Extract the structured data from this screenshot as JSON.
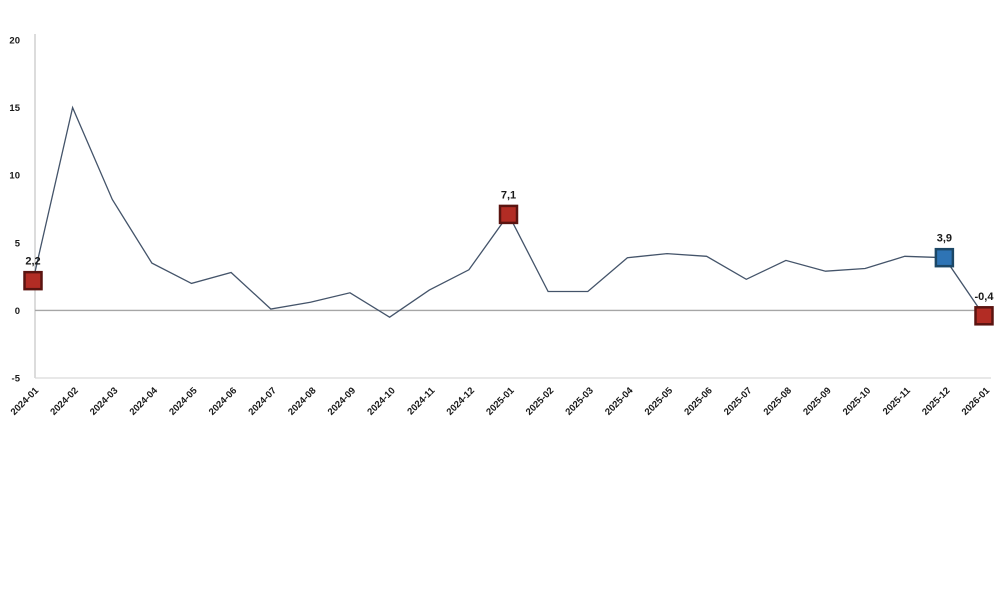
{
  "chart_data": {
    "type": "line",
    "title": "",
    "xlabel": "",
    "ylabel": "",
    "x": [
      "2024-01",
      "2024-02",
      "2024-03",
      "2024-04",
      "2024-05",
      "2024-06",
      "2024-07",
      "2024-08",
      "2024-09",
      "2024-10",
      "2024-11",
      "2024-12",
      "2025-01",
      "2025-02",
      "2025-03",
      "2025-04",
      "2025-05",
      "2025-06",
      "2025-07",
      "2025-08",
      "2025-09",
      "2025-10",
      "2025-11",
      "2025-12",
      "2026-01"
    ],
    "values": [
      2.2,
      15.0,
      8.2,
      3.5,
      2.0,
      2.8,
      0.1,
      0.6,
      1.3,
      -0.5,
      1.5,
      3.0,
      7.1,
      1.4,
      1.4,
      3.9,
      4.2,
      4.0,
      2.3,
      3.7,
      2.9,
      3.1,
      4.0,
      3.9,
      -0.4
    ],
    "ylim": [
      -5,
      20
    ],
    "yticks": [
      20,
      15,
      10,
      5,
      0,
      -5
    ],
    "grid": "zero-line-only",
    "legend": "none",
    "line_color": "#44546A",
    "axis_color": "#C9C9C9",
    "baseline_color": "#D9D9D9",
    "zero_line_color": "#A6A6A6",
    "labeled_points": [
      {
        "x": "2024-01",
        "value": 2.2,
        "label": "2,2",
        "marker_color": "#B22C24",
        "marker_border": "#5A1410"
      },
      {
        "x": "2025-01",
        "value": 7.1,
        "label": "7,1",
        "marker_color": "#B22C24",
        "marker_border": "#5A1410"
      },
      {
        "x": "2025-12",
        "value": 3.9,
        "label": "3,9",
        "marker_color": "#2E74B5",
        "marker_border": "#1C4766"
      },
      {
        "x": "2026-01",
        "value": -0.4,
        "label": "-0,4",
        "marker_color": "#B22C24",
        "marker_border": "#5A1410"
      }
    ]
  }
}
